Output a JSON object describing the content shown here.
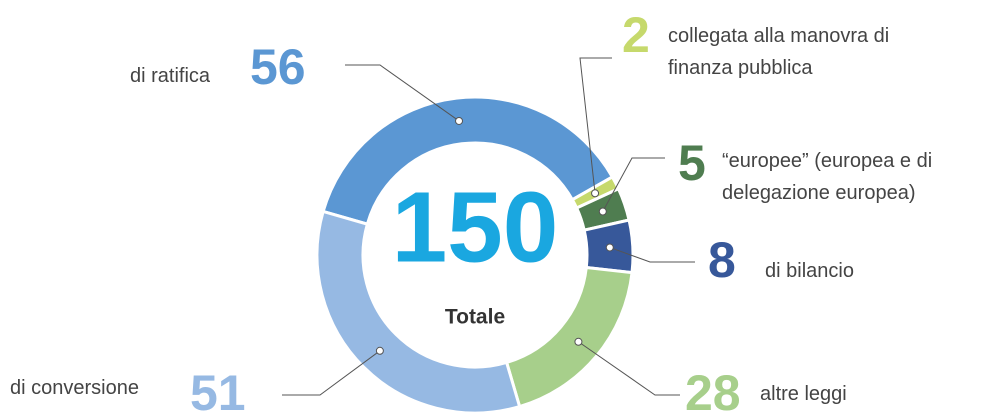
{
  "chart_data": {
    "type": "donut",
    "categories": [
      "di ratifica",
      "collegata alla manovra di finanza pubblica",
      "“europee” (europea e di delegazione europea)",
      "di bilancio",
      "altre leggi",
      "di conversione"
    ],
    "values": [
      56,
      2,
      5,
      8,
      28,
      51
    ],
    "colors": [
      "#5b97d3",
      "#c6d96c",
      "#4f7d50",
      "#37589a",
      "#a7cf8b",
      "#96b9e3"
    ],
    "total": 150,
    "total_label": "Totale"
  }
}
